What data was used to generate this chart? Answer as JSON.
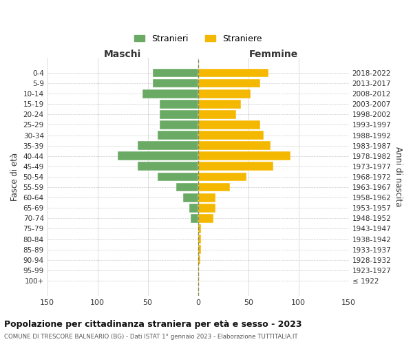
{
  "age_groups": [
    "100+",
    "95-99",
    "90-94",
    "85-89",
    "80-84",
    "75-79",
    "70-74",
    "65-69",
    "60-64",
    "55-59",
    "50-54",
    "45-49",
    "40-44",
    "35-39",
    "30-34",
    "25-29",
    "20-24",
    "15-19",
    "10-14",
    "5-9",
    "0-4"
  ],
  "birth_years": [
    "≤ 1922",
    "1923-1927",
    "1928-1932",
    "1933-1937",
    "1938-1942",
    "1943-1947",
    "1948-1952",
    "1953-1957",
    "1958-1962",
    "1963-1967",
    "1968-1972",
    "1973-1977",
    "1978-1982",
    "1983-1987",
    "1988-1992",
    "1993-1997",
    "1998-2002",
    "2003-2007",
    "2008-2012",
    "2013-2017",
    "2018-2022"
  ],
  "maschi": [
    0,
    0,
    0,
    0,
    0,
    0,
    7,
    9,
    15,
    22,
    40,
    60,
    80,
    60,
    40,
    38,
    38,
    38,
    55,
    45,
    45
  ],
  "femmine": [
    1,
    1,
    2,
    3,
    3,
    3,
    15,
    17,
    17,
    32,
    48,
    75,
    92,
    72,
    65,
    62,
    38,
    43,
    52,
    62,
    70
  ],
  "color_maschi": "#6aaa64",
  "color_femmine": "#f5b800",
  "color_center_line": "#8a8a5c",
  "title": "Popolazione per cittadinanza straniera per età e sesso - 2023",
  "subtitle": "COMUNE DI TRESCORE BALNEARIO (BG) - Dati ISTAT 1° gennaio 2023 - Elaborazione TUTTITALIA.IT",
  "xlabel_left": "Maschi",
  "xlabel_right": "Femmine",
  "ylabel_left": "Fasce di età",
  "ylabel_right": "Anni di nascita",
  "legend_maschi": "Stranieri",
  "legend_femmine": "Straniere",
  "xlim": 150,
  "xtick_positions": [
    -150,
    -100,
    -50,
    0,
    50,
    100,
    150
  ],
  "xtick_labels": [
    "150",
    "100",
    "50",
    "0",
    "50",
    "100",
    "150"
  ]
}
